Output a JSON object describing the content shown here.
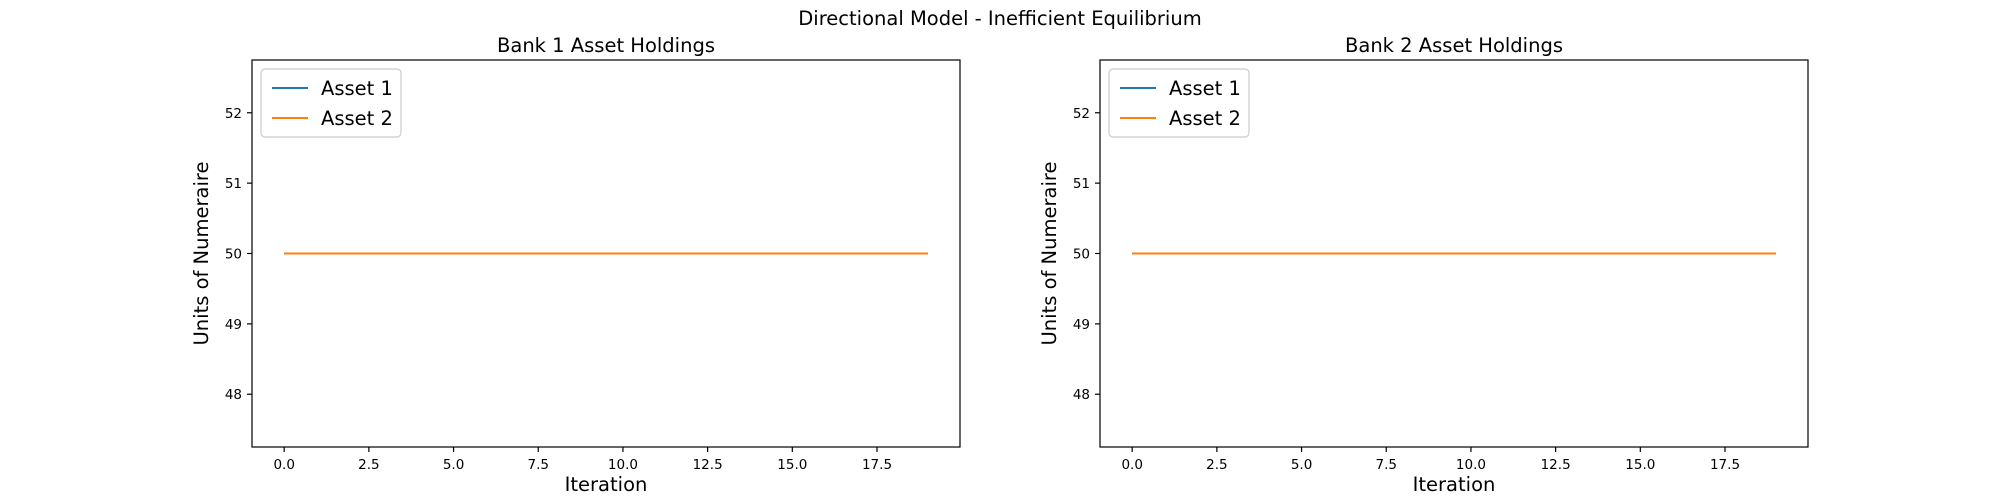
{
  "figure": {
    "title": "Directional Model - Inefficient Equilibrium"
  },
  "chart_data": [
    {
      "type": "line",
      "title": "Bank 1 Asset Holdings",
      "xlabel": "Iteration",
      "ylabel": "Units of Numeraire",
      "xlim": [
        -0.95,
        19.95
      ],
      "ylim": [
        47.25,
        52.75
      ],
      "x_ticks": [
        0.0,
        2.5,
        5.0,
        7.5,
        10.0,
        12.5,
        15.0,
        17.5
      ],
      "x_tick_labels": [
        "0.0",
        "2.5",
        "5.0",
        "7.5",
        "10.0",
        "12.5",
        "15.0",
        "17.5"
      ],
      "y_ticks": [
        48,
        49,
        50,
        51,
        52
      ],
      "y_tick_labels": [
        "48",
        "49",
        "50",
        "51",
        "52"
      ],
      "grid": false,
      "legend": "upper-left",
      "x": [
        0,
        1,
        2,
        3,
        4,
        5,
        6,
        7,
        8,
        9,
        10,
        11,
        12,
        13,
        14,
        15,
        16,
        17,
        18,
        19
      ],
      "series": [
        {
          "name": "Asset 1",
          "color": "#1f77b4",
          "values": [
            50,
            50,
            50,
            50,
            50,
            50,
            50,
            50,
            50,
            50,
            50,
            50,
            50,
            50,
            50,
            50,
            50,
            50,
            50,
            50
          ]
        },
        {
          "name": "Asset 2",
          "color": "#ff7f0e",
          "values": [
            50,
            50,
            50,
            50,
            50,
            50,
            50,
            50,
            50,
            50,
            50,
            50,
            50,
            50,
            50,
            50,
            50,
            50,
            50,
            50
          ]
        }
      ]
    },
    {
      "type": "line",
      "title": "Bank 2 Asset Holdings",
      "xlabel": "Iteration",
      "ylabel": "Units of Numeraire",
      "xlim": [
        -0.95,
        19.95
      ],
      "ylim": [
        47.25,
        52.75
      ],
      "x_ticks": [
        0.0,
        2.5,
        5.0,
        7.5,
        10.0,
        12.5,
        15.0,
        17.5
      ],
      "x_tick_labels": [
        "0.0",
        "2.5",
        "5.0",
        "7.5",
        "10.0",
        "12.5",
        "15.0",
        "17.5"
      ],
      "y_ticks": [
        48,
        49,
        50,
        51,
        52
      ],
      "y_tick_labels": [
        "48",
        "49",
        "50",
        "51",
        "52"
      ],
      "grid": false,
      "legend": "upper-left",
      "x": [
        0,
        1,
        2,
        3,
        4,
        5,
        6,
        7,
        8,
        9,
        10,
        11,
        12,
        13,
        14,
        15,
        16,
        17,
        18,
        19
      ],
      "series": [
        {
          "name": "Asset 1",
          "color": "#1f77b4",
          "values": [
            50,
            50,
            50,
            50,
            50,
            50,
            50,
            50,
            50,
            50,
            50,
            50,
            50,
            50,
            50,
            50,
            50,
            50,
            50,
            50
          ]
        },
        {
          "name": "Asset 2",
          "color": "#ff7f0e",
          "values": [
            50,
            50,
            50,
            50,
            50,
            50,
            50,
            50,
            50,
            50,
            50,
            50,
            50,
            50,
            50,
            50,
            50,
            50,
            50,
            50
          ]
        }
      ]
    }
  ]
}
